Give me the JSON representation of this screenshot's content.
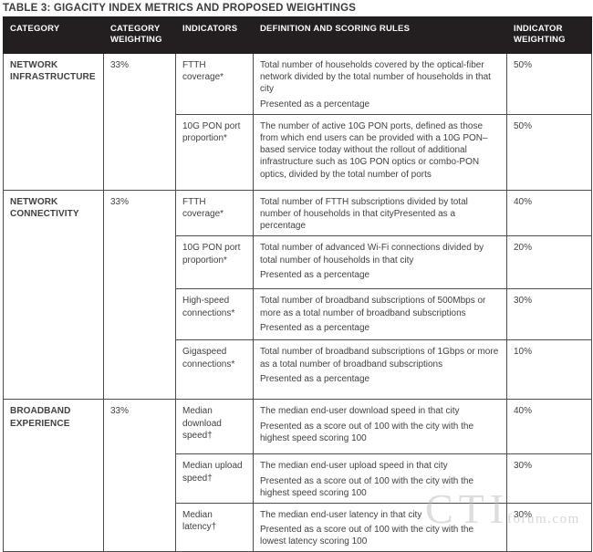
{
  "page": {
    "title": "TABLE 3: GIGACITY INDEX METRICS AND PROPOSED WEIGHTINGS"
  },
  "columns": {
    "category": "CATEGORY",
    "category_weighting": "CATEGORY WEIGHTING",
    "indicators": "INDICATORS",
    "definition": "DEFINITION AND SCORING RULES",
    "indicator_weighting": "INDICATOR WEIGHTING"
  },
  "sections": [
    {
      "category": "NETWORK INFRASTRUCTURE",
      "category_weighting": "33%",
      "indicators": [
        {
          "name": "FTTH coverage*",
          "definition": [
            "Total number of households covered by the optical-fiber network divided by the total number of households in that city",
            "Presented as a percentage"
          ],
          "weighting": "50%"
        },
        {
          "name": "10G PON port proportion*",
          "definition": [
            "The number of active 10G PON ports, defined as those from which end users can be provided with a 10G PON–based service today without the rollout of additional infrastructure such as 10G PON optics or combo-PON optics, divided by the total number of ports"
          ],
          "weighting": "50%"
        }
      ]
    },
    {
      "category": "NETWORK CONNECTIVITY",
      "category_weighting": "33%",
      "indicators": [
        {
          "name": "FTTH coverage*",
          "definition": [
            "Total number of FTTH subscriptions divided by total number of households in that cityPresented as a percentage"
          ],
          "weighting": "40%"
        },
        {
          "name": "10G PON port proportion*",
          "definition": [
            "Total number of advanced Wi-Fi connections divided by total number of households in that city",
            "Presented as a percentage"
          ],
          "weighting": "20%"
        },
        {
          "name": "High-speed connections*",
          "definition": [
            "Total number of broadband subscriptions of 500Mbps or more as a total number of broadband subscriptions",
            "Presented as a percentage"
          ],
          "weighting": "30%"
        },
        {
          "name": "Gigaspeed connections*",
          "definition": [
            "Total number of broadband subscriptions of 1Gbps or more as a total number of broadband subscriptions",
            "Presented as a percentage"
          ],
          "weighting": "10%"
        }
      ]
    },
    {
      "category": "BROADBAND EXPERIENCE",
      "category_weighting": "33%",
      "indicators": [
        {
          "name": "Median download speed†",
          "definition": [
            "The median end-user download speed in that city",
            "Presented as a score out of 100 with the city with the highest speed scoring 100"
          ],
          "weighting": "40%"
        },
        {
          "name": "Median upload speed†",
          "definition": [
            "The median end-user upload speed in that city",
            "Presented as a score out of 100 with the city with the highest speed scoring 100"
          ],
          "weighting": "30%"
        },
        {
          "name": "Median latency†",
          "definition": [
            "The median end-user latency in that city",
            "Presented as a score out of 100 with the city with the lowest latency scoring 100"
          ],
          "weighting": "30%"
        }
      ]
    }
  ],
  "watermark": {
    "large": "CTI",
    "small": "forum.com"
  },
  "colors": {
    "header_bg": "#231f20",
    "header_text": "#ffffff",
    "border": "#4d4d4f",
    "body_text": "#414042"
  }
}
